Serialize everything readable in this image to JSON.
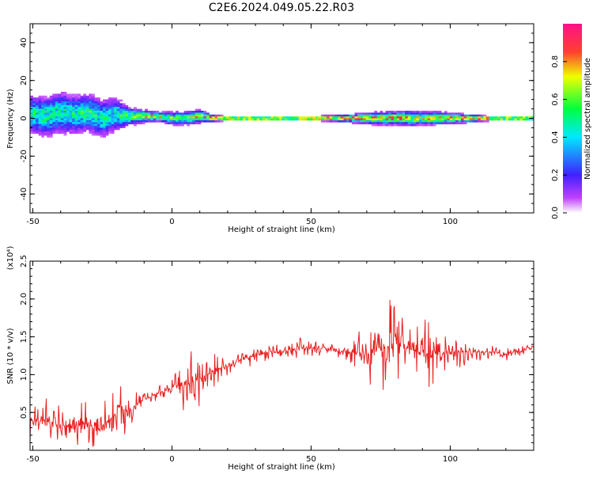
{
  "title": "C2E6.2024.049.05.22.R03",
  "chart_data": [
    {
      "type": "heatmap",
      "xlabel": "Height of straight line (km)",
      "ylabel": "Frequency (Hz)",
      "xlim": [
        -51,
        130
      ],
      "ylim": [
        -50,
        50
      ],
      "xticks": [
        "-50",
        "0",
        "50",
        "100"
      ],
      "yticks": [
        "40",
        "20",
        "0",
        "-20",
        "-40"
      ],
      "colorbar": {
        "label": "Normalized spectral amplitude",
        "range": [
          0.0,
          1.0
        ],
        "ticks": [
          "0.0",
          "0.2",
          "0.4",
          "0.6",
          "0.8"
        ],
        "colors": [
          "#ffffff",
          "#c040ff",
          "#4020ff",
          "#00e8ff",
          "#00ff40",
          "#f0ff00",
          "#ff4030",
          "#ff1088"
        ]
      },
      "ridge": {
        "x": [
          -50,
          -45,
          -40,
          -35,
          -30,
          -25,
          -20,
          -15,
          -10,
          -5,
          0,
          5,
          10,
          15,
          20,
          30,
          40,
          50,
          60,
          70,
          75,
          80,
          85,
          90,
          95,
          100,
          105,
          110,
          115,
          120,
          125,
          130
        ],
        "y": [
          2,
          1,
          3,
          2,
          3,
          0,
          2,
          1,
          1,
          1,
          0,
          0,
          1,
          0,
          0,
          0,
          0,
          0,
          0,
          0,
          0,
          0,
          0,
          0,
          0,
          0,
          0,
          0,
          0,
          0,
          0,
          0
        ],
        "peak_amplitude": [
          0.5,
          0.55,
          0.5,
          0.5,
          0.55,
          0.5,
          0.5,
          0.6,
          0.75,
          0.8,
          0.6,
          0.7,
          0.75,
          0.85,
          0.95,
          0.95,
          0.95,
          0.95,
          0.9,
          0.85,
          0.8,
          0.85,
          0.75,
          0.75,
          0.8,
          0.8,
          0.85,
          0.9,
          0.95,
          0.95,
          0.95,
          0.95
        ],
        "spread_hz": [
          9,
          9,
          10,
          9,
          9,
          9,
          8,
          4,
          3,
          2,
          3,
          3,
          3,
          1.5,
          1,
          1,
          1,
          1,
          1.5,
          2.5,
          3,
          3,
          3.5,
          3,
          3,
          2.5,
          2,
          1.5,
          1,
          1,
          1,
          1
        ]
      }
    },
    {
      "type": "line",
      "xlabel": "Height of straight line (km)",
      "ylabel": "SNR (10 * v/v)",
      "scale_note": "(x10⁴)",
      "xlim": [
        -51,
        130
      ],
      "ylim": [
        0,
        2.5
      ],
      "xticks": [
        "-50",
        "0",
        "50",
        "100"
      ],
      "yticks": [
        "0.5",
        "1.0",
        "1.5",
        "2.0",
        "2.5"
      ],
      "line_color": "#e82020",
      "series": [
        {
          "x": [
            -51,
            -46,
            -41,
            -36,
            -31,
            -26,
            -21,
            -19,
            -17,
            -15,
            -13,
            -11,
            -8,
            -5,
            -2,
            1,
            4,
            7,
            10,
            15,
            20,
            25,
            30,
            35,
            40,
            45,
            50,
            55,
            60,
            65,
            70,
            72,
            75,
            77,
            79,
            80,
            82,
            85,
            88,
            91,
            93,
            95,
            98,
            101,
            104,
            107,
            110,
            113,
            116,
            119,
            122,
            125,
            128,
            130
          ],
          "y": [
            0.35,
            0.4,
            0.35,
            0.3,
            0.35,
            0.3,
            0.45,
            0.6,
            0.5,
            0.55,
            0.6,
            0.65,
            0.7,
            0.75,
            0.8,
            0.85,
            0.85,
            0.9,
            0.95,
            1.05,
            1.1,
            1.2,
            1.25,
            1.3,
            1.3,
            1.35,
            1.35,
            1.35,
            1.3,
            1.3,
            1.25,
            1.3,
            1.35,
            1.35,
            1.4,
            1.5,
            1.4,
            1.35,
            1.3,
            1.3,
            1.25,
            1.3,
            1.3,
            1.3,
            1.3,
            1.3,
            1.3,
            1.3,
            1.3,
            1.25,
            1.3,
            1.3,
            1.35,
            1.38
          ],
          "amplitude": [
            0.2,
            0.25,
            0.25,
            0.25,
            0.25,
            0.25,
            0.3,
            0.35,
            0.3,
            0.2,
            0.15,
            0.1,
            0.08,
            0.08,
            0.1,
            0.15,
            0.3,
            0.4,
            0.3,
            0.2,
            0.15,
            0.12,
            0.1,
            0.1,
            0.1,
            0.12,
            0.1,
            0.08,
            0.1,
            0.2,
            0.35,
            0.45,
            0.6,
            0.55,
            0.6,
            0.7,
            0.5,
            0.4,
            0.3,
            0.45,
            0.55,
            0.35,
            0.25,
            0.25,
            0.2,
            0.15,
            0.12,
            0.1,
            0.08,
            0.08,
            0.08,
            0.06,
            0.05,
            0.04
          ]
        }
      ]
    }
  ]
}
